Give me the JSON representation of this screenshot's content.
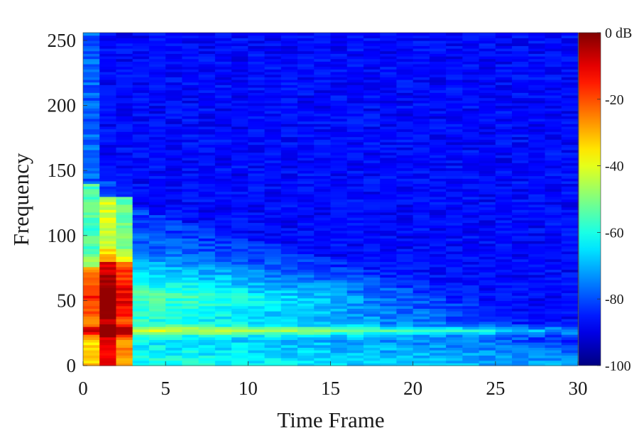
{
  "chart_data": {
    "type": "heatmap",
    "title": "",
    "xlabel": "Time Frame",
    "ylabel": "Frequency",
    "xlim": [
      0,
      30
    ],
    "ylim": [
      0,
      256
    ],
    "x_ticks": [
      "0",
      "5",
      "10",
      "15",
      "20",
      "25",
      "30"
    ],
    "y_ticks": [
      "0",
      "50",
      "100",
      "150",
      "200",
      "250"
    ],
    "colorbar": {
      "ticks": [
        "0 dB",
        "-20",
        "-40",
        "-60",
        "-80",
        "-100"
      ],
      "range_db": [
        -100,
        0
      ],
      "colormap": "jet"
    },
    "grid": false,
    "description_of_values": {
      "time_frames": 30,
      "frequency_bins": 256,
      "peak_band_center": 26,
      "peak_level_db": -5,
      "floor_level_db": -92
    }
  }
}
